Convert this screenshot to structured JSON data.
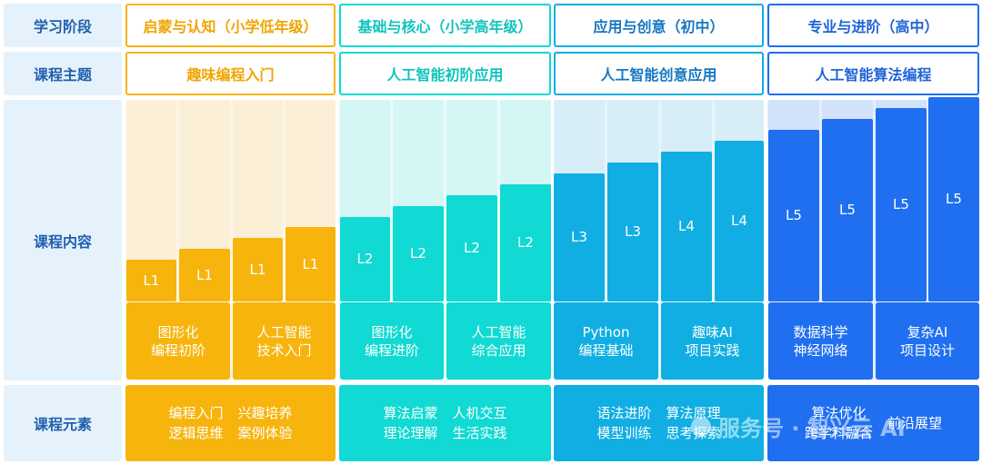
{
  "row_labels": {
    "stage": "学习阶段",
    "theme": "课程主题",
    "content": "课程内容",
    "elements": "课程元素"
  },
  "stages": [
    {
      "name": "启蒙与认知（小学低年级）",
      "theme": "趣味编程入门",
      "color": "#f6b40c",
      "pale": "#fbefd8",
      "text_color": "#f0a500",
      "levels": [
        "L1",
        "L1",
        "L1",
        "L1"
      ],
      "subjects": [
        {
          "line1": "图形化",
          "line2": "编程初阶"
        },
        {
          "line1": "人工智能",
          "line2": "技术入门"
        }
      ],
      "elements": [
        {
          "a": "编程入门",
          "b": "逻辑思维"
        },
        {
          "a": "兴趣培养",
          "b": "案例体验"
        }
      ]
    },
    {
      "name": "基础与核心（小学高年级）",
      "theme": "人工智能初阶应用",
      "color": "#11d9d3",
      "pale": "#d4f7f5",
      "text_color": "#10c4bd",
      "levels": [
        "L2",
        "L2",
        "L2",
        "L2"
      ],
      "subjects": [
        {
          "line1": "图形化",
          "line2": "编程进阶"
        },
        {
          "line1": "人工智能",
          "line2": "综合应用"
        }
      ],
      "elements": [
        {
          "a": "算法启蒙",
          "b": "理论理解"
        },
        {
          "a": "人机交互",
          "b": "生活实践"
        }
      ]
    },
    {
      "name": "应用与创意（初中）",
      "theme": "人工智能创意应用",
      "color": "#10aee3",
      "pale": "#d7eef8",
      "text_color": "#1677c2",
      "levels": [
        "L3",
        "L3",
        "L4",
        "L4"
      ],
      "subjects": [
        {
          "line1": "Python",
          "line2": "编程基础"
        },
        {
          "line1": "趣味AI",
          "line2": "项目实践"
        }
      ],
      "elements": [
        {
          "a": "语法进阶",
          "b": "模型训练"
        },
        {
          "a": "算法原理",
          "b": "思考探索"
        }
      ]
    },
    {
      "name": "专业与进阶（高中）",
      "theme": "人工智能算法编程",
      "color": "#1f6ff0",
      "pale": "#d3e2fb",
      "text_color": "#1f63d8",
      "levels": [
        "L5",
        "L5",
        "L5",
        "L5"
      ],
      "subjects": [
        {
          "line1": "数据科学",
          "line2": "神经网络"
        },
        {
          "line1": "复杂AI",
          "line2": "项目设计"
        }
      ],
      "elements": [
        {
          "a": "算法优化",
          "b": "跨学科融合"
        },
        {
          "a": "前沿展望",
          "b": ""
        }
      ]
    }
  ],
  "watermark": "服务号 · 智兴云 AI"
}
